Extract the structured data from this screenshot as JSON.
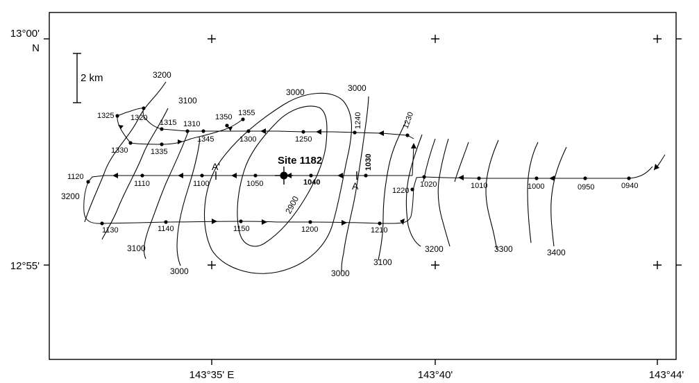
{
  "axes": {
    "lat_top": "13°00'",
    "lat_top_hemisphere": "N",
    "lat_bottom": "12°55'",
    "lon_1": "143°35' E",
    "lon_2": "143°40'",
    "lon_3": "143°44'"
  },
  "scale_bar": {
    "label": "2 km"
  },
  "site": {
    "label": "Site 1182"
  },
  "section": {
    "start": "A",
    "end": "A'"
  },
  "contour_labels": [
    "3200",
    "3100",
    "3000",
    "3000",
    "2900",
    "3200",
    "3100",
    "3000",
    "3000",
    "3100",
    "3200",
    "3300",
    "3400"
  ],
  "time_labels": [
    "1355",
    "1350",
    "1325",
    "1320",
    "1315",
    "1310",
    "1345",
    "1300",
    "1250",
    "1240",
    "1230",
    "1330",
    "1335",
    "1120",
    "1110",
    "1100",
    "1050",
    "1040",
    "1030",
    "1220",
    "1020",
    "1010",
    "1000",
    "0950",
    "0940",
    "1130",
    "1140",
    "1150",
    "1200",
    "1210"
  ]
}
